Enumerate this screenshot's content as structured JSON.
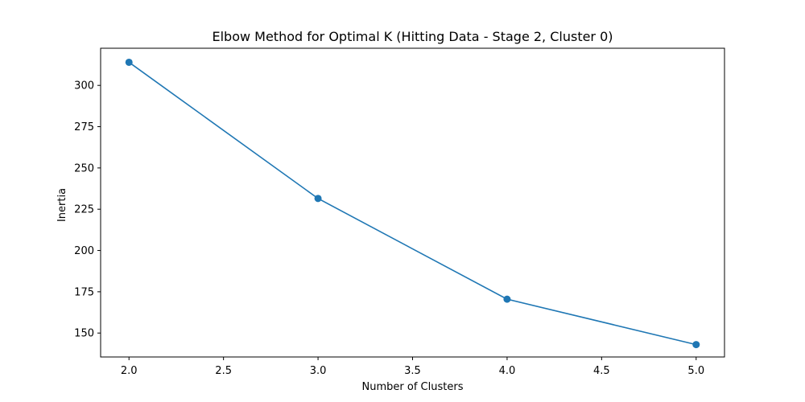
{
  "chart_data": {
    "type": "line",
    "title": "Elbow Method for Optimal K (Hitting Data - Stage 2, Cluster 0)",
    "xlabel": "Number of Clusters",
    "ylabel": "Inertia",
    "x": [
      2,
      3,
      4,
      5
    ],
    "series": [
      {
        "values": [
          314,
          231.5,
          170.5,
          143
        ],
        "color": "#1f77b4",
        "marker": "circle"
      }
    ],
    "xlim": [
      1.85,
      5.15
    ],
    "ylim": [
      135.5,
      322.5
    ],
    "xticks": [
      2.0,
      2.5,
      3.0,
      3.5,
      4.0,
      4.5,
      5.0
    ],
    "xtick_labels": [
      "2.0",
      "2.5",
      "3.0",
      "3.5",
      "4.0",
      "4.5",
      "5.0"
    ],
    "yticks": [
      150,
      175,
      200,
      225,
      250,
      275,
      300
    ],
    "ytick_labels": [
      "150",
      "175",
      "200",
      "225",
      "250",
      "275",
      "300"
    ],
    "grid": false,
    "legend": "none"
  }
}
